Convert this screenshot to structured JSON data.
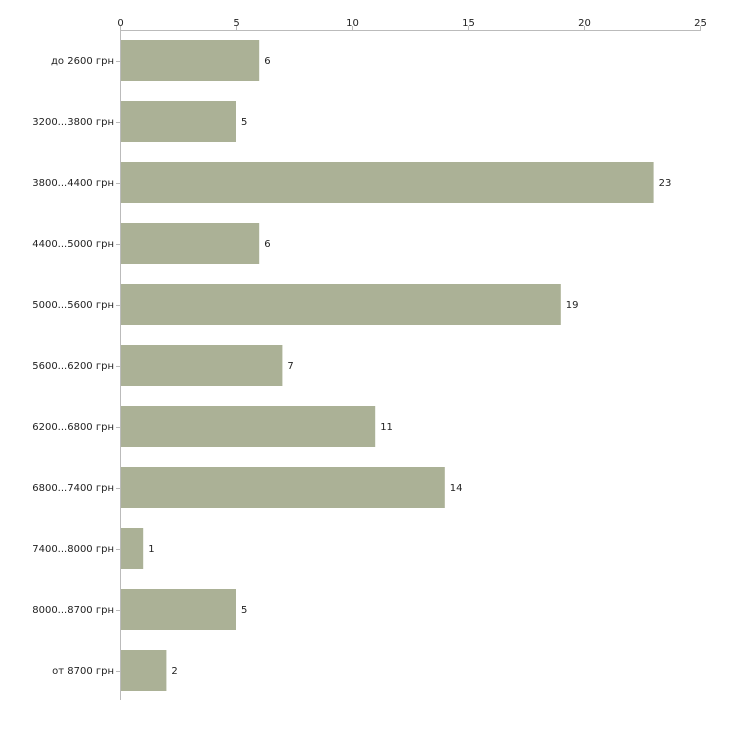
{
  "chart_data": {
    "type": "bar",
    "orientation": "horizontal",
    "title": "",
    "xlabel": "",
    "ylabel": "",
    "categories": [
      "до 2600 грн",
      "3200...3800 грн",
      "3800...4400 грн",
      "4400...5000 грн",
      "5000...5600 грн",
      "5600...6200 грн",
      "6200...6800 грн",
      "6800...7400 грн",
      "7400...8000 грн",
      "8000...8700 грн",
      "от 8700 грн"
    ],
    "values": [
      6,
      5,
      23,
      6,
      19,
      7,
      11,
      14,
      1,
      5,
      2
    ],
    "xlim": [
      0,
      25
    ],
    "xticks": [
      0,
      5,
      10,
      15,
      20,
      25
    ],
    "x_axis_position": "top",
    "grid": false,
    "legend": "none",
    "bar_color": "#abb196",
    "axis_color": "#bbbbbb",
    "text_color": "#222222"
  }
}
